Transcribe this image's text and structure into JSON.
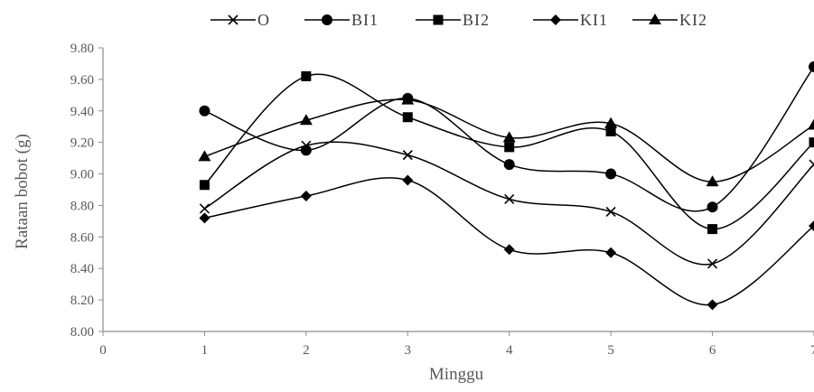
{
  "chart_data": {
    "type": "line",
    "title": "",
    "xlabel": "Minggu",
    "ylabel": "Rataan bobot (g)",
    "x": [
      1,
      2,
      3,
      4,
      5,
      6,
      7
    ],
    "xlim": [
      0,
      7
    ],
    "ylim": [
      8.0,
      9.8
    ],
    "xticks": [
      "0",
      "1",
      "2",
      "3",
      "4",
      "5",
      "6",
      "7"
    ],
    "yticks": [
      "8.00",
      "8.20",
      "8.40",
      "8.60",
      "8.80",
      "9.00",
      "9.20",
      "9.40",
      "9.60",
      "9.80"
    ],
    "grid": false,
    "legend_position": "top",
    "line_color": "#000000",
    "series": [
      {
        "name": "O",
        "marker": "x",
        "values": [
          8.78,
          9.18,
          9.12,
          8.84,
          8.76,
          8.43,
          9.06
        ]
      },
      {
        "name": "BI1",
        "marker": "circle",
        "values": [
          9.4,
          9.15,
          9.48,
          9.06,
          9.0,
          8.79,
          9.68
        ]
      },
      {
        "name": "BI2",
        "marker": "square",
        "values": [
          8.93,
          9.62,
          9.36,
          9.17,
          9.27,
          8.65,
          9.2
        ]
      },
      {
        "name": "KI1",
        "marker": "diamond",
        "values": [
          8.72,
          8.86,
          8.96,
          8.52,
          8.5,
          8.17,
          8.67
        ]
      },
      {
        "name": "KI2",
        "marker": "triangle",
        "values": [
          9.11,
          9.34,
          9.47,
          9.23,
          9.32,
          8.95,
          9.31
        ]
      }
    ]
  }
}
